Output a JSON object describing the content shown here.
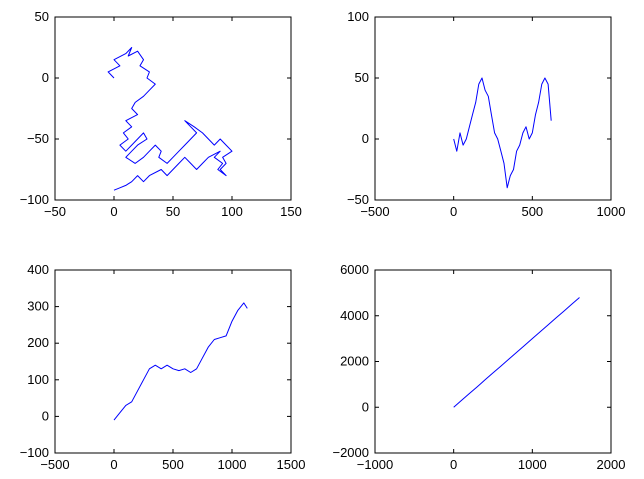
{
  "chart_data": [
    {
      "type": "line",
      "xlim": [
        -50,
        150
      ],
      "ylim": [
        -100,
        50
      ],
      "xticks": [
        -50,
        0,
        50,
        100,
        150
      ],
      "yticks": [
        -100,
        -50,
        0,
        50
      ],
      "grid": false,
      "color": "#0000ff",
      "series": [
        {
          "x": [
            0,
            -5,
            5,
            0,
            10,
            15,
            12,
            20,
            25,
            22,
            30,
            28,
            35,
            30,
            25,
            18,
            15,
            20,
            10,
            15,
            8,
            12,
            5,
            10,
            15,
            20,
            25,
            28,
            20,
            15,
            10,
            18,
            25,
            30,
            35,
            40,
            38,
            45,
            50,
            55,
            60,
            65,
            70,
            65,
            60,
            68,
            75,
            80,
            85,
            90,
            95,
            100,
            92,
            95,
            90,
            95,
            88,
            92,
            85,
            90,
            80,
            75,
            70,
            65,
            60,
            55,
            50,
            45,
            40,
            30,
            25,
            20,
            15,
            10,
            5,
            0
          ],
          "y": [
            0,
            5,
            10,
            15,
            20,
            25,
            18,
            22,
            15,
            10,
            5,
            0,
            -5,
            -10,
            -15,
            -20,
            -25,
            -30,
            -35,
            -40,
            -45,
            -50,
            -55,
            -60,
            -55,
            -50,
            -45,
            -50,
            -55,
            -60,
            -65,
            -70,
            -65,
            -60,
            -55,
            -60,
            -65,
            -70,
            -65,
            -60,
            -55,
            -50,
            -45,
            -40,
            -35,
            -40,
            -45,
            -50,
            -55,
            -50,
            -55,
            -60,
            -65,
            -70,
            -75,
            -80,
            -75,
            -70,
            -65,
            -60,
            -65,
            -70,
            -75,
            -70,
            -65,
            -70,
            -75,
            -80,
            -75,
            -80,
            -85,
            -80,
            -85,
            -88,
            -90,
            -92
          ]
        }
      ]
    },
    {
      "type": "line",
      "xlim": [
        -500,
        1000
      ],
      "ylim": [
        -50,
        100
      ],
      "xticks": [
        -500,
        0,
        500,
        1000
      ],
      "yticks": [
        -50,
        0,
        50,
        100
      ],
      "grid": false,
      "color": "#0000ff",
      "series": [
        {
          "x": [
            0,
            20,
            40,
            60,
            80,
            100,
            120,
            140,
            160,
            180,
            200,
            220,
            240,
            260,
            280,
            300,
            320,
            340,
            360,
            380,
            400,
            420,
            440,
            460,
            480,
            500,
            520,
            540,
            560,
            580,
            600,
            620
          ],
          "y": [
            0,
            -10,
            5,
            -5,
            0,
            10,
            20,
            30,
            45,
            50,
            40,
            35,
            20,
            5,
            0,
            -10,
            -20,
            -40,
            -30,
            -25,
            -10,
            -5,
            5,
            10,
            0,
            5,
            20,
            30,
            45,
            50,
            45,
            15
          ]
        }
      ]
    },
    {
      "type": "line",
      "xlim": [
        -500,
        1500
      ],
      "ylim": [
        -100,
        400
      ],
      "xticks": [
        -500,
        0,
        500,
        1000,
        1500
      ],
      "yticks": [
        -100,
        0,
        100,
        200,
        300,
        400
      ],
      "grid": false,
      "color": "#0000ff",
      "series": [
        {
          "x": [
            0,
            50,
            100,
            150,
            200,
            250,
            300,
            350,
            400,
            450,
            500,
            550,
            600,
            650,
            700,
            750,
            800,
            850,
            900,
            950,
            1000,
            1050,
            1100,
            1130
          ],
          "y": [
            -10,
            10,
            30,
            40,
            70,
            100,
            130,
            140,
            130,
            140,
            130,
            125,
            130,
            120,
            130,
            160,
            190,
            210,
            215,
            220,
            260,
            290,
            310,
            295
          ]
        }
      ]
    },
    {
      "type": "line",
      "xlim": [
        -1000,
        2000
      ],
      "ylim": [
        -2000,
        6000
      ],
      "xticks": [
        -1000,
        0,
        1000,
        2000
      ],
      "yticks": [
        -2000,
        0,
        2000,
        4000,
        6000
      ],
      "grid": false,
      "color": "#0000ff",
      "series": [
        {
          "x": [
            0,
            100,
            200,
            300,
            400,
            500,
            600,
            700,
            800,
            900,
            1000,
            1100,
            1200,
            1300,
            1400,
            1500,
            1600
          ],
          "y": [
            0,
            300,
            600,
            900,
            1200,
            1500,
            1800,
            2100,
            2400,
            2700,
            3000,
            3300,
            3600,
            3900,
            4200,
            4500,
            4800
          ]
        }
      ]
    }
  ]
}
